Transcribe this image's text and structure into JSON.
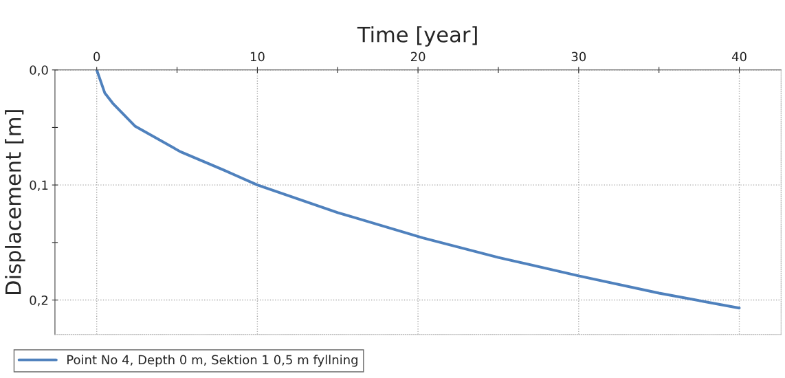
{
  "chart_data": {
    "type": "line",
    "xlabel": "Time [year]",
    "ylabel": "Displacement [m]",
    "xlim": [
      -2.6,
      42.6
    ],
    "ylim": [
      0.23,
      0
    ],
    "xticks": [
      0,
      {
        "value": 5,
        "label": null
      },
      10,
      {
        "value": 15,
        "label": null
      },
      20,
      {
        "value": 25,
        "label": null
      },
      30,
      {
        "value": 35,
        "label": null
      },
      40
    ],
    "yticks": [
      {
        "value": 0,
        "label": "0,0"
      },
      {
        "value": 0.05,
        "label": null
      },
      {
        "value": 0.1,
        "label": "0,1"
      },
      {
        "value": 0.15,
        "label": null
      },
      {
        "value": 0.2,
        "label": "0,2"
      }
    ],
    "grid": true,
    "legend": "bottom left",
    "line_style": "solid",
    "marker": "none",
    "series": [
      {
        "name": "Point No 4, Depth 0 m, Sektion 1 0,5 m fyllning",
        "color": "#4f81bd",
        "x": [
          0,
          0.5,
          1,
          2.4,
          5.2,
          7.9,
          10,
          15,
          20.3,
          25,
          30,
          35,
          40
        ],
        "values": [
          0,
          0.02,
          0.029,
          0.049,
          0.071,
          0.087,
          0.1,
          0.124,
          0.146,
          0.163,
          0.179,
          0.194,
          0.207
        ]
      }
    ]
  }
}
